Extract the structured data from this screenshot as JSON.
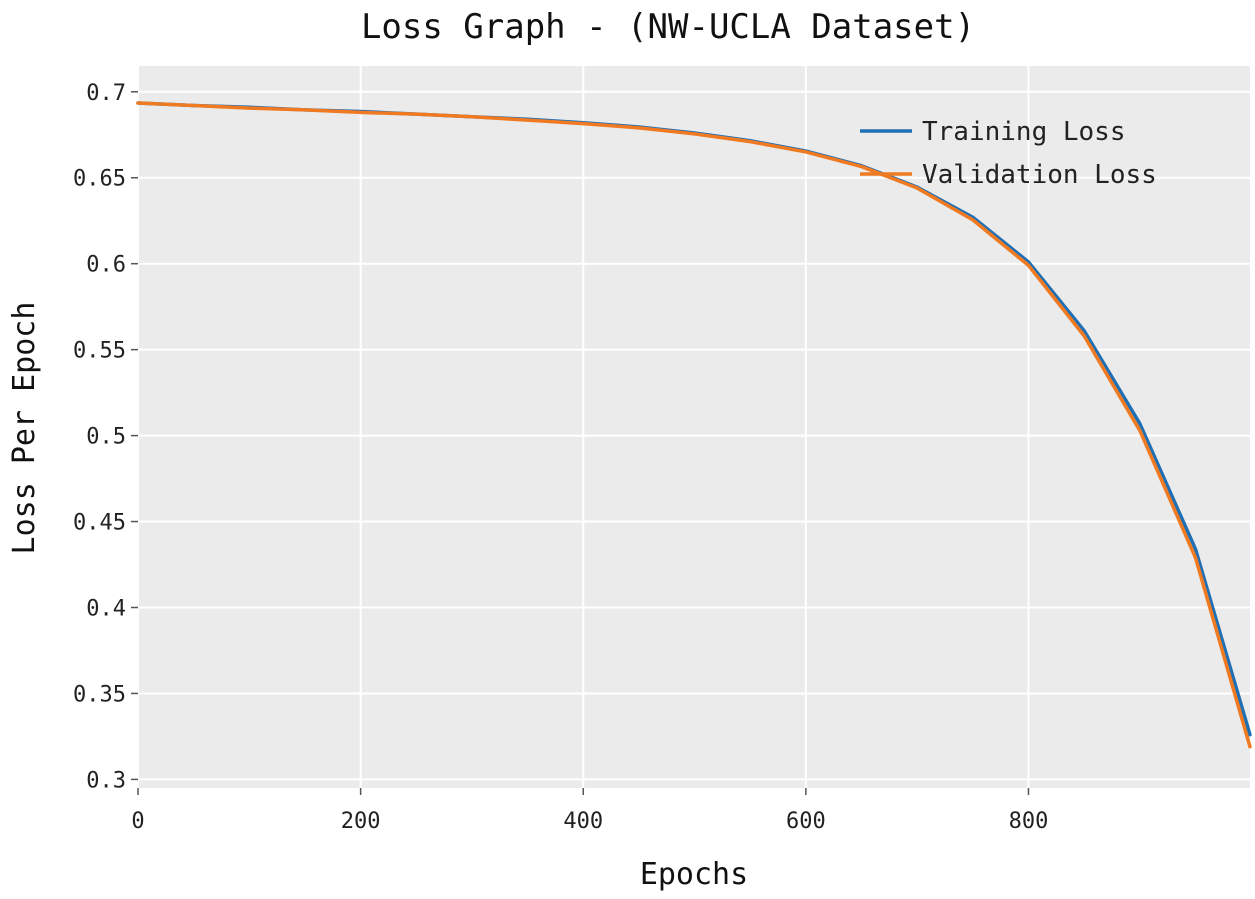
{
  "chart_data": {
    "type": "line",
    "title": "Loss Graph - (NW-UCLA Dataset)",
    "xlabel": "Epochs",
    "ylabel": "Loss Per Epoch",
    "xlim": [
      0,
      999
    ],
    "ylim": [
      0.295,
      0.715
    ],
    "xticks": [
      0,
      200,
      400,
      600,
      800
    ],
    "xtick_labels": [
      "0",
      "200",
      "400",
      "600",
      "800"
    ],
    "yticks": [
      0.3,
      0.35,
      0.4,
      0.45,
      0.5,
      0.55,
      0.6,
      0.65,
      0.7
    ],
    "ytick_labels": [
      "0.3",
      "0.35",
      "0.4",
      "0.45",
      "0.5",
      "0.55",
      "0.6",
      "0.65",
      "0.7"
    ],
    "grid": true,
    "legend_position": "top-right",
    "background": "#ebebeb",
    "x": [
      0,
      50,
      100,
      150,
      200,
      250,
      300,
      350,
      400,
      450,
      500,
      550,
      600,
      650,
      700,
      750,
      800,
      850,
      900,
      950,
      999
    ],
    "series": [
      {
        "name": "Training Loss",
        "color": "#1f6fb5",
        "values": [
          0.6935,
          0.692,
          0.691,
          0.6895,
          0.6885,
          0.687,
          0.6855,
          0.684,
          0.682,
          0.6795,
          0.676,
          0.6715,
          0.6655,
          0.657,
          0.6445,
          0.627,
          0.601,
          0.561,
          0.507,
          0.434,
          0.326
        ]
      },
      {
        "name": "Validation Loss",
        "color": "#f07a22",
        "values": [
          0.6935,
          0.692,
          0.6905,
          0.6895,
          0.688,
          0.687,
          0.6855,
          0.6835,
          0.6815,
          0.679,
          0.6755,
          0.671,
          0.665,
          0.6565,
          0.644,
          0.6255,
          0.599,
          0.558,
          0.503,
          0.429,
          0.319
        ]
      }
    ]
  }
}
